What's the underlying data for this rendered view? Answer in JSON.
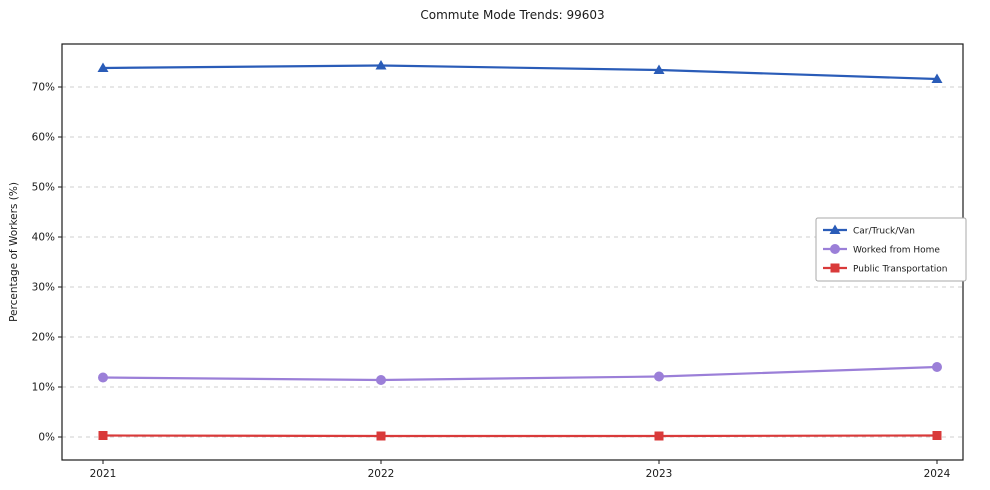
{
  "chart_data": {
    "type": "line",
    "title": "Commute Mode Trends: 99603",
    "xlabel": "",
    "ylabel": "Percentage of Workers (%)",
    "categories": [
      "2021",
      "2022",
      "2023",
      "2024"
    ],
    "ylim": [
      -4.6,
      78.6
    ],
    "yticks": [
      0,
      10,
      20,
      30,
      40,
      50,
      60,
      70
    ],
    "ytick_labels": [
      "0%",
      "10%",
      "20%",
      "30%",
      "40%",
      "50%",
      "60%",
      "70%"
    ],
    "grid": "horizontal dashed",
    "legend": {
      "position": "center-right",
      "entries": [
        "Car/Truck/Van",
        "Worked from Home",
        "Public Transportation"
      ]
    },
    "series": [
      {
        "name": "Car/Truck/Van",
        "marker": "triangle",
        "color": "#2a5cb8",
        "values": [
          73.8,
          74.3,
          73.4,
          71.6
        ]
      },
      {
        "name": "Worked from Home",
        "marker": "circle",
        "color": "#9b7fd8",
        "values": [
          11.9,
          11.4,
          12.1,
          14.0
        ]
      },
      {
        "name": "Public Transportation",
        "marker": "square",
        "color": "#d93a3a",
        "values": [
          0.3,
          0.2,
          0.2,
          0.3
        ]
      }
    ]
  }
}
